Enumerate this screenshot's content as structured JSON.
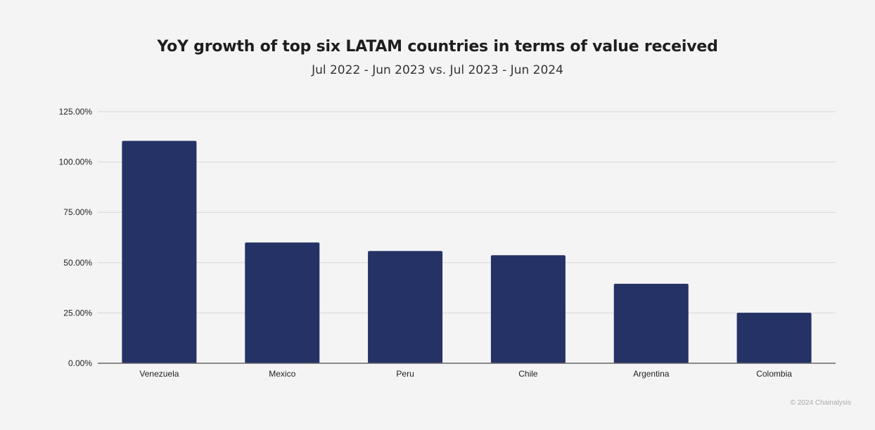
{
  "chart_data": {
    "type": "bar",
    "title": "YoY growth of top six LATAM countries in terms of value received",
    "subtitle": "Jul 2022 - Jun 2023 vs. Jul 2023 - Jun 2024",
    "categories": [
      "Venezuela",
      "Mexico",
      "Peru",
      "Chile",
      "Argentina",
      "Colombia"
    ],
    "values": [
      110.5,
      60.0,
      55.8,
      53.7,
      39.5,
      25.1
    ],
    "unit": "%",
    "ylim": [
      0,
      125
    ],
    "yticks": [
      "0.00%",
      "25.00%",
      "50.00%",
      "75.00%",
      "100.00%",
      "125.00%"
    ],
    "grid": true,
    "bar_color": "#253266",
    "xlabel": "",
    "ylabel": ""
  },
  "credit": "© 2024 Chainalysis"
}
